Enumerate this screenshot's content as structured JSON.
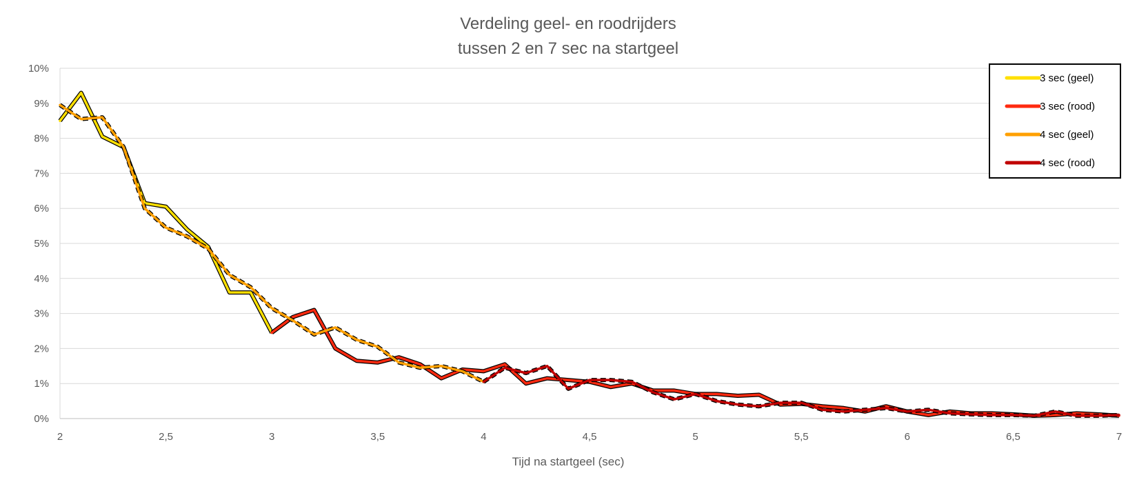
{
  "chart_data": {
    "type": "line",
    "title": [
      "Verdeling geel- en roodrijders",
      "tussen 2 en 7 sec na startgeel"
    ],
    "xlabel": "Tijd na startgeel (sec)",
    "ylabel": "",
    "xlim": [
      2,
      7
    ],
    "ylim": [
      0,
      10
    ],
    "x_ticks": [
      2,
      2.5,
      3,
      3.5,
      4,
      4.5,
      5,
      5.5,
      6,
      6.5,
      7
    ],
    "x_tick_labels": [
      "2",
      "2,5",
      "3",
      "3,5",
      "4",
      "4,5",
      "5",
      "5,5",
      "6",
      "6,5",
      "7"
    ],
    "y_ticks": [
      0,
      1,
      2,
      3,
      4,
      5,
      6,
      7,
      8,
      9,
      10
    ],
    "y_tick_labels": [
      "0%",
      "1%",
      "2%",
      "3%",
      "4%",
      "5%",
      "6%",
      "7%",
      "8%",
      "9%",
      "10%"
    ],
    "grid": true,
    "legend_position": "top-right",
    "series": [
      {
        "name": "3 sec (geel)",
        "color": "#FFE000",
        "style": "solid-outlined",
        "points": [
          [
            2.0,
            8.5
          ],
          [
            2.1,
            9.3
          ],
          [
            2.2,
            8.05
          ],
          [
            2.3,
            7.75
          ],
          [
            2.4,
            6.15
          ],
          [
            2.5,
            6.05
          ],
          [
            2.6,
            5.4
          ],
          [
            2.7,
            4.9
          ],
          [
            2.8,
            3.6
          ],
          [
            2.9,
            3.6
          ],
          [
            3.0,
            2.45
          ]
        ]
      },
      {
        "name": "3 sec (rood)",
        "color": "#FF2A10",
        "style": "solid-outlined",
        "points": [
          [
            3.0,
            2.45
          ],
          [
            3.1,
            2.9
          ],
          [
            3.2,
            3.1
          ],
          [
            3.3,
            2.0
          ],
          [
            3.4,
            1.65
          ],
          [
            3.5,
            1.6
          ],
          [
            3.6,
            1.75
          ],
          [
            3.7,
            1.55
          ],
          [
            3.8,
            1.15
          ],
          [
            3.9,
            1.4
          ],
          [
            4.0,
            1.35
          ],
          [
            4.1,
            1.55
          ],
          [
            4.2,
            1.0
          ],
          [
            4.3,
            1.15
          ],
          [
            4.4,
            1.1
          ],
          [
            4.5,
            1.05
          ],
          [
            4.6,
            0.9
          ],
          [
            4.7,
            1.0
          ],
          [
            4.8,
            0.8
          ],
          [
            4.9,
            0.8
          ],
          [
            5.0,
            0.7
          ],
          [
            5.1,
            0.7
          ],
          [
            5.2,
            0.65
          ],
          [
            5.3,
            0.68
          ],
          [
            5.4,
            0.4
          ],
          [
            5.5,
            0.42
          ],
          [
            5.6,
            0.35
          ],
          [
            5.7,
            0.3
          ],
          [
            5.8,
            0.2
          ],
          [
            5.9,
            0.35
          ],
          [
            6.0,
            0.2
          ],
          [
            6.1,
            0.1
          ],
          [
            6.2,
            0.2
          ],
          [
            6.3,
            0.15
          ],
          [
            6.4,
            0.15
          ],
          [
            6.5,
            0.12
          ],
          [
            6.6,
            0.08
          ],
          [
            6.7,
            0.1
          ],
          [
            6.8,
            0.15
          ],
          [
            6.9,
            0.12
          ],
          [
            7.0,
            0.08
          ]
        ]
      },
      {
        "name": "4 sec (geel)",
        "color": "#FFA000",
        "style": "dashed-outlined",
        "points": [
          [
            2.0,
            8.95
          ],
          [
            2.1,
            8.55
          ],
          [
            2.2,
            8.6
          ],
          [
            2.3,
            7.75
          ],
          [
            2.4,
            6.0
          ],
          [
            2.5,
            5.45
          ],
          [
            2.6,
            5.2
          ],
          [
            2.7,
            4.85
          ],
          [
            2.8,
            4.1
          ],
          [
            2.9,
            3.75
          ],
          [
            3.0,
            3.15
          ],
          [
            3.1,
            2.8
          ],
          [
            3.2,
            2.4
          ],
          [
            3.3,
            2.6
          ],
          [
            3.4,
            2.25
          ],
          [
            3.5,
            2.05
          ],
          [
            3.6,
            1.6
          ],
          [
            3.7,
            1.45
          ],
          [
            3.8,
            1.5
          ],
          [
            3.9,
            1.35
          ],
          [
            4.0,
            1.05
          ]
        ]
      },
      {
        "name": "4 sec (rood)",
        "color": "#C00000",
        "style": "dashed-outlined",
        "points": [
          [
            4.0,
            1.05
          ],
          [
            4.1,
            1.45
          ],
          [
            4.2,
            1.3
          ],
          [
            4.3,
            1.5
          ],
          [
            4.4,
            0.85
          ],
          [
            4.5,
            1.1
          ],
          [
            4.6,
            1.1
          ],
          [
            4.7,
            1.05
          ],
          [
            4.8,
            0.75
          ],
          [
            4.9,
            0.55
          ],
          [
            5.0,
            0.7
          ],
          [
            5.1,
            0.5
          ],
          [
            5.2,
            0.4
          ],
          [
            5.3,
            0.35
          ],
          [
            5.4,
            0.45
          ],
          [
            5.5,
            0.45
          ],
          [
            5.6,
            0.25
          ],
          [
            5.7,
            0.2
          ],
          [
            5.8,
            0.25
          ],
          [
            5.9,
            0.3
          ],
          [
            6.0,
            0.2
          ],
          [
            6.1,
            0.25
          ],
          [
            6.2,
            0.15
          ],
          [
            6.3,
            0.12
          ],
          [
            6.4,
            0.1
          ],
          [
            6.5,
            0.1
          ],
          [
            6.6,
            0.08
          ],
          [
            6.7,
            0.2
          ],
          [
            6.8,
            0.08
          ],
          [
            6.9,
            0.08
          ],
          [
            7.0,
            0.1
          ]
        ]
      }
    ]
  }
}
